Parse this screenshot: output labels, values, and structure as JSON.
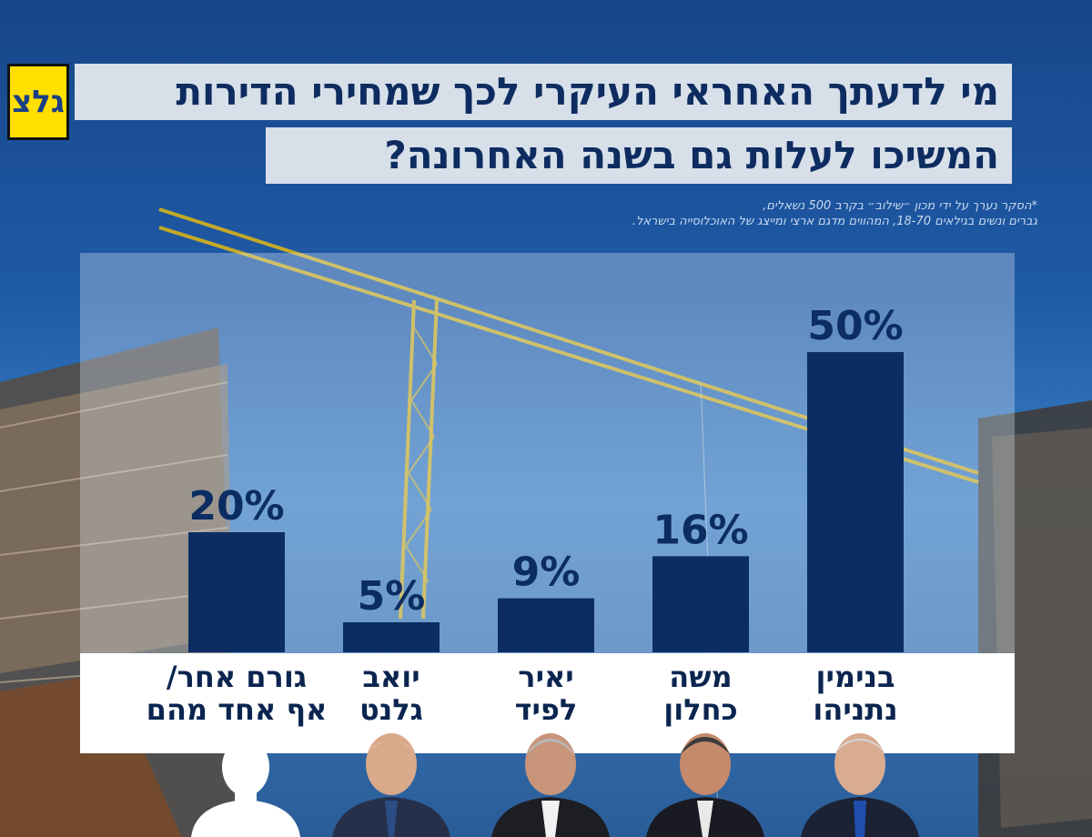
{
  "logo": {
    "text": "גלצ",
    "colors": {
      "background": "#ffe000",
      "text": "#1a3f86"
    }
  },
  "title": {
    "line1": "מי לדעתך האחראי העיקרי לכך שמחירי הדירות",
    "line2": "המשיכו לעלות גם בשנה האחרונה?"
  },
  "footnote": {
    "line1": "*הסקר נערך על ידי מכון ״שילוב״ בקרב 500 נשאלים,",
    "line2": "גברים ונשים בגילאים 18-70, המהווים מדגם ארצי ומייצג של האוכלוסייה בישראל."
  },
  "colors": {
    "bar": "#0b2d62",
    "value_text": "#0b2d62",
    "title_bg": "#d7dfe9"
  },
  "chart_data": {
    "type": "bar",
    "categories": [
      {
        "line1": "גורם אחר/",
        "line2": "אף אחד מהם"
      },
      {
        "line1": "יואב",
        "line2": "גלנט"
      },
      {
        "line1": "יאיר",
        "line2": "לפיד"
      },
      {
        "line1": "משה",
        "line2": "כחלון"
      },
      {
        "line1": "בנימין",
        "line2": "נתניהו"
      }
    ],
    "values": [
      20,
      5,
      9,
      16,
      50
    ],
    "value_labels": [
      "20%",
      "5%",
      "9%",
      "16%",
      "50%"
    ],
    "ylim": [
      0,
      60
    ],
    "grid": false,
    "legend": "none",
    "portraits": [
      "silhouette-icon",
      "person-photo",
      "person-photo",
      "person-photo",
      "person-photo"
    ]
  }
}
